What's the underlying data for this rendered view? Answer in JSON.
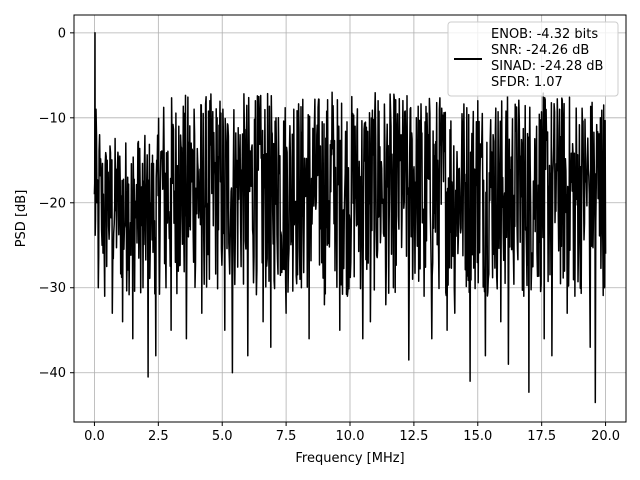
{
  "chart_data": {
    "type": "line",
    "title": "",
    "xlabel": "Frequency [MHz]",
    "ylabel": "PSD [dB]",
    "xlim": [
      -0.8,
      20.8
    ],
    "ylim": [
      -45.8,
      2.1
    ],
    "xticks": [
      0.0,
      2.5,
      5.0,
      7.5,
      10.0,
      12.5,
      15.0,
      17.5,
      20.0
    ],
    "xtick_labels": [
      "0.0",
      "2.5",
      "5.0",
      "7.5",
      "10.0",
      "12.5",
      "15.0",
      "17.5",
      "20.0"
    ],
    "yticks": [
      0,
      -10,
      -20,
      -30,
      -40
    ],
    "ytick_labels": [
      "0",
      "−10",
      "−20",
      "−30",
      "−40"
    ],
    "grid": true,
    "legend_position": "top-right",
    "legend_entries": [
      "ENOB: -4.32 bits",
      "SNR: -24.26 dB",
      "SINAD: -24.28 dB",
      "SFDR: 1.07"
    ],
    "line_color": "#000000",
    "series": [
      {
        "x": [
          0.0,
          0.02,
          0.04,
          0.06,
          0.1,
          0.15,
          0.2,
          0.3,
          0.4,
          0.5,
          0.7,
          0.9,
          1.1,
          1.3,
          1.5,
          1.7,
          1.9,
          2.1,
          2.2,
          2.4,
          2.6,
          2.8,
          3.0,
          3.3,
          3.6,
          3.9,
          4.2,
          4.5,
          4.8,
          5.1,
          5.4,
          5.7,
          6.0,
          6.3,
          6.6,
          6.9,
          7.2,
          7.5,
          7.8,
          8.1,
          8.4,
          8.7,
          9.0,
          9.3,
          9.6,
          9.9,
          10.2,
          10.5,
          10.8,
          11.1,
          11.4,
          11.7,
          12.0,
          12.3,
          12.6,
          12.9,
          13.2,
          13.5,
          13.8,
          14.1,
          14.4,
          14.7,
          15.0,
          15.3,
          15.6,
          15.9,
          16.2,
          16.5,
          16.8,
          17.0,
          17.3,
          17.6,
          17.9,
          18.2,
          18.5,
          18.8,
          19.1,
          19.4,
          19.6,
          19.8,
          20.0
        ],
        "y": [
          -19,
          0.0,
          -22,
          -9,
          -20,
          -30,
          -12,
          -25,
          -31,
          -15,
          -33,
          -16,
          -34,
          -17,
          -36,
          -13,
          -30,
          -40.5,
          -20,
          -38,
          -14,
          -30,
          -35,
          -11,
          -36,
          -9,
          -33,
          -29,
          -10,
          -35,
          -40,
          -12,
          -38,
          -8,
          -34,
          -37,
          -10,
          -33,
          -9,
          -30,
          -36,
          -12,
          -32,
          -7,
          -35,
          -31,
          -11,
          -36,
          -34,
          -8,
          -32,
          -30,
          -12,
          -38.5,
          -10,
          -31,
          -36,
          -9,
          -35,
          -33,
          -11,
          -41,
          -8,
          -38,
          -12,
          -34,
          -39,
          -10,
          -31,
          -42.3,
          -11,
          -36,
          -38,
          -9,
          -33,
          -31,
          -11,
          -37,
          -43.5,
          -10,
          -26
        ]
      }
    ]
  }
}
